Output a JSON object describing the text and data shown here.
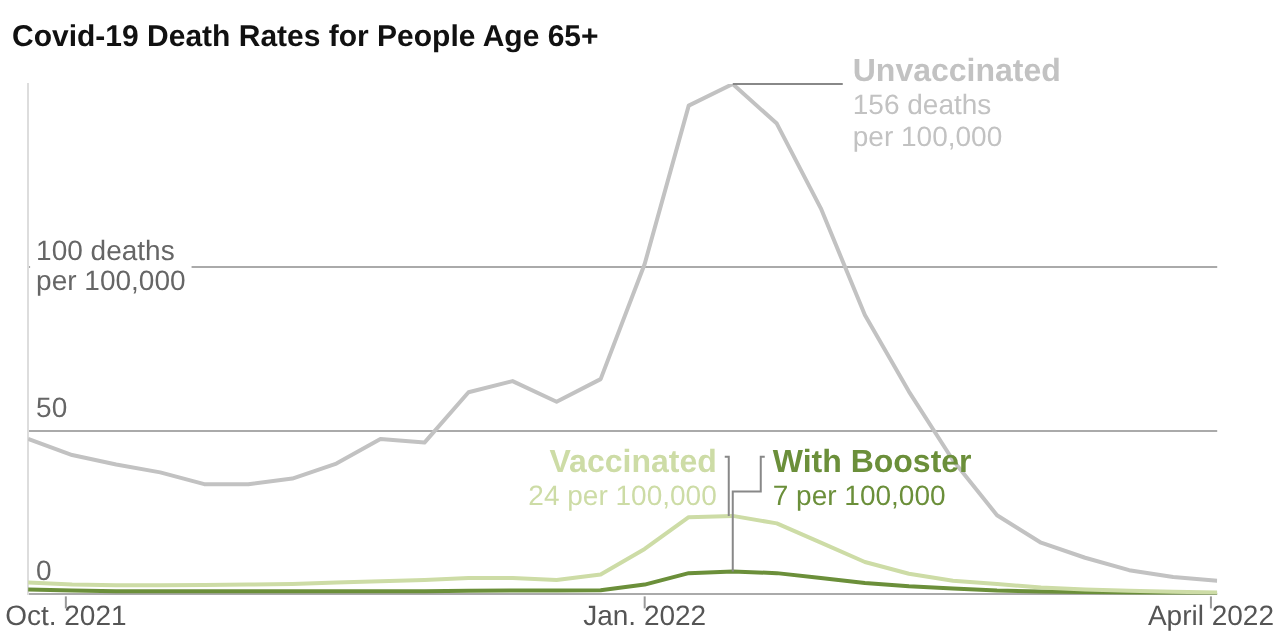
{
  "chart_data": {
    "type": "line",
    "title": "Covid-19 Death Rates for People Age 65+",
    "x": [
      "2021-09-25",
      "2021-10-02",
      "2021-10-09",
      "2021-10-16",
      "2021-10-23",
      "2021-10-30",
      "2021-11-06",
      "2021-11-13",
      "2021-11-20",
      "2021-11-27",
      "2021-12-04",
      "2021-12-11",
      "2021-12-18",
      "2021-12-25",
      "2022-01-01",
      "2022-01-08",
      "2022-01-15",
      "2022-01-22",
      "2022-01-29",
      "2022-02-05",
      "2022-02-12",
      "2022-02-19",
      "2022-02-26",
      "2022-03-05",
      "2022-03-12",
      "2022-03-19",
      "2022-03-26",
      "2022-04-02"
    ],
    "series": [
      {
        "name": "Unvaccinated",
        "color": "#c2c2c2",
        "values": [
          47.5,
          42.6,
          39.7,
          37.3,
          33.7,
          33.7,
          35.4,
          40,
          47.5,
          46.4,
          61.8,
          65.2,
          58.9,
          65.8,
          101,
          149.4,
          156,
          143.9,
          118,
          85.4,
          62,
          41,
          24.2,
          15.8,
          11.2,
          7.4,
          5.3,
          4.2
        ]
      },
      {
        "name": "Vaccinated",
        "color": "#cddca6",
        "values": [
          3.6,
          3,
          2.8,
          2.8,
          2.9,
          3,
          3.2,
          3.6,
          4,
          4.4,
          5,
          5,
          4.4,
          6.1,
          13.9,
          23.6,
          24,
          21.7,
          15.8,
          9.9,
          6.3,
          4.2,
          3.2,
          2.1,
          1.5,
          1.1,
          0.8,
          0.6
        ]
      },
      {
        "name": "With Booster",
        "color": "#6b8f3a",
        "values": [
          1.5,
          1.2,
          1,
          1,
          1,
          1,
          1,
          1,
          1,
          1,
          1.1,
          1.2,
          1.2,
          1.3,
          3,
          6.5,
          7,
          6.5,
          5,
          3.5,
          2.5,
          1.8,
          1.2,
          0.9,
          0.7,
          0.5,
          0.4,
          0.3
        ]
      }
    ],
    "annotations": [
      {
        "text": "156 deaths\nper 100,000",
        "x": "2022-01-15",
        "y": 156
      },
      {
        "text": "24 per 100,000",
        "x": "2022-01-15",
        "y": 24
      },
      {
        "text": "7 per 100,000",
        "x": "2022-01-15",
        "y": 7
      }
    ],
    "xlim": [
      "2021-09-25",
      "2022-04-02"
    ],
    "xticks": [
      {
        "value": "2021-10-01",
        "label": "Oct. 2021"
      },
      {
        "value": "2022-01-01",
        "label": "Jan. 2022"
      },
      {
        "value": "2022-04-01",
        "label": "April 2022"
      }
    ],
    "ylim": [
      0,
      156
    ],
    "yticks": [
      0,
      50,
      {
        "value": 100,
        "label": "100 deaths\nper 100,000"
      }
    ],
    "grid": "y",
    "legend": false,
    "marker": "none",
    "line_style": "solid"
  }
}
